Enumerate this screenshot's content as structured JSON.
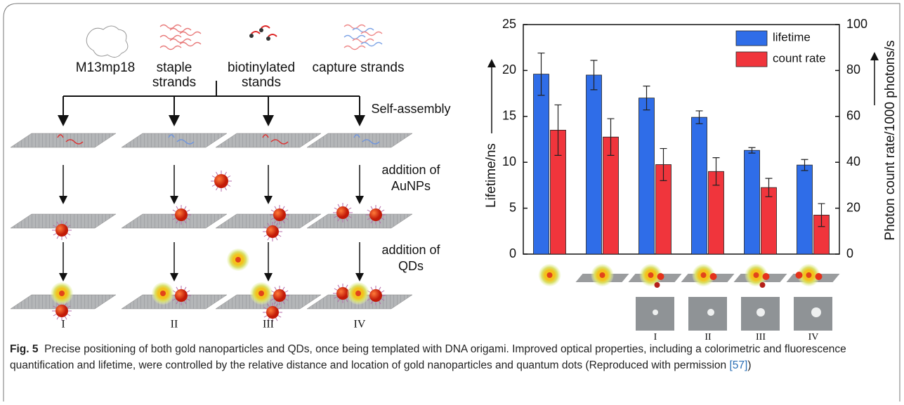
{
  "figure": {
    "components": [
      "M13mp18",
      [
        "staple",
        "strands"
      ],
      [
        "biotinylated",
        "stands"
      ],
      "capture strands"
    ],
    "steps": {
      "assembly": "Self-assembly",
      "aunp": [
        "addition of",
        "AuNPs"
      ],
      "qd": [
        "addition of",
        "QDs"
      ]
    },
    "designs": [
      "I",
      "II",
      "III",
      "IV"
    ]
  },
  "chart_data": {
    "type": "bar",
    "categories": [
      null,
      null,
      null,
      null,
      null,
      null
    ],
    "series": [
      {
        "name": "lifetime",
        "color": "#2f6de8",
        "values": [
          19.6,
          19.5,
          17.0,
          14.9,
          11.3,
          9.7
        ],
        "errors": [
          2.3,
          1.6,
          1.3,
          0.7,
          0.3,
          0.6
        ]
      },
      {
        "name": "count rate",
        "color": "#f0353c",
        "axis": "y2",
        "values": [
          54,
          51,
          39,
          36,
          29,
          17
        ],
        "errors": [
          11,
          8,
          7,
          6,
          4,
          5
        ]
      }
    ],
    "ylabel": "Lifetime/ns",
    "y2label": "Photon count rate/1000 photons/s",
    "ylim": [
      0,
      25
    ],
    "yticks": [
      0,
      5,
      10,
      15,
      20,
      25
    ],
    "y2lim": [
      0,
      100
    ],
    "y2ticks": [
      0,
      20,
      40,
      60,
      80,
      100
    ],
    "legend": "top-right",
    "image_labels": [
      "I",
      "II",
      "III",
      "IV"
    ]
  },
  "caption": {
    "label": "Fig. 5",
    "text": "Precise positioning of both gold nanoparticles and QDs, once being templated with DNA origami. Improved optical properties, including a colorimetric and fluorescence quantification and lifetime, were controlled by the relative distance and location of gold nanoparticles and quantum dots (Reproduced with permission ",
    "ref": "[57]",
    "end": ")"
  }
}
